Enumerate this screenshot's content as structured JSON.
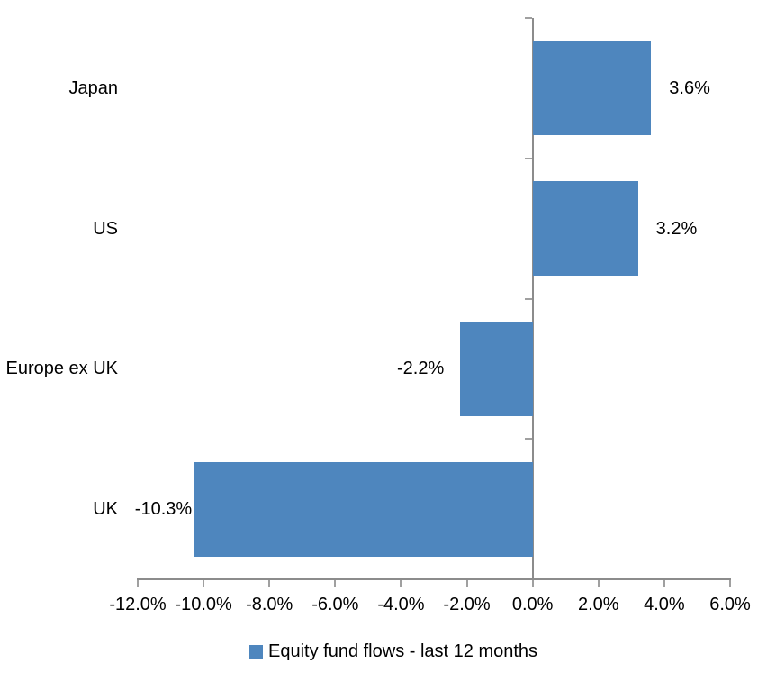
{
  "chart_data": {
    "type": "bar",
    "orientation": "horizontal",
    "categories": [
      "Japan",
      "US",
      "Europe ex UK",
      "UK"
    ],
    "values": [
      3.6,
      3.2,
      -2.2,
      -10.3
    ],
    "data_labels": [
      "3.6%",
      "3.2%",
      "-2.2%",
      "-10.3%"
    ],
    "series_name": "Equity fund flows - last 12 months",
    "xlim": [
      -12,
      6
    ],
    "x_tick_step": 2,
    "x_tick_labels": [
      "-12.0%",
      "-10.0%",
      "-8.0%",
      "-6.0%",
      "-4.0%",
      "-2.0%",
      "0.0%",
      "2.0%",
      "4.0%",
      "6.0%"
    ],
    "grid": false,
    "legend_position": "bottom",
    "colors": {
      "bar": "#4E86BE",
      "axis": "#8C8C8C",
      "tick": "#A0A0A0",
      "text": "#000000",
      "background": "#FFFFFF"
    }
  }
}
